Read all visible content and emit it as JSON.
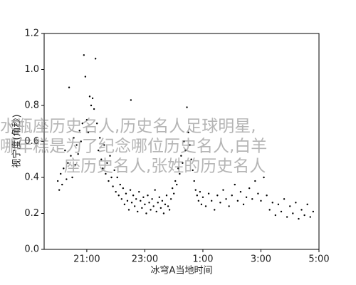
{
  "chart_data": {
    "type": "scatter",
    "xlabel": "冰穹A当地时间",
    "ylabel": "视宁度(角秒)",
    "xlim": [
      19.53,
      29
    ],
    "ylim": [
      0,
      1.2
    ],
    "xticks": [
      {
        "value": 21,
        "label": "21:00"
      },
      {
        "value": 23,
        "label": "23:00"
      },
      {
        "value": 25,
        "label": "1:00"
      },
      {
        "value": 27,
        "label": "3:00"
      },
      {
        "value": 29,
        "label": "5:00"
      }
    ],
    "yticks": [
      {
        "value": 0,
        "label": "0.0"
      },
      0.2,
      0.4,
      0.6,
      0.8,
      {
        "value": 1,
        "label": "1.0"
      },
      1.2
    ],
    "grid": false,
    "color": "#000000",
    "watermark": [
      "水瓶座历史名人,历史名人足球明星,",
      "哪年糕是为了纪念哪位历史名人,白羊",
      "座历史名人,张姓的历史名人"
    ],
    "x": [
      20.0,
      20.05,
      20.1,
      20.15,
      20.2,
      20.25,
      20.3,
      20.35,
      20.39,
      20.45,
      20.5,
      20.55,
      20.6,
      20.65,
      20.7,
      20.75,
      20.8,
      20.85,
      20.9,
      20.95,
      21.0,
      21.05,
      21.1,
      21.15,
      21.2,
      21.25,
      21.3,
      21.35,
      21.4,
      21.45,
      21.5,
      21.55,
      21.6,
      21.65,
      21.7,
      21.75,
      21.8,
      21.85,
      21.9,
      21.95,
      22.0,
      22.05,
      22.1,
      22.15,
      22.2,
      22.25,
      22.3,
      22.35,
      22.4,
      22.45,
      22.5,
      22.52,
      22.55,
      22.6,
      22.65,
      22.7,
      22.75,
      22.8,
      22.85,
      22.9,
      22.95,
      23.0,
      23.05,
      23.1,
      23.15,
      23.2,
      23.25,
      23.3,
      23.35,
      23.4,
      23.45,
      23.5,
      23.55,
      23.6,
      23.65,
      23.7,
      23.75,
      23.8,
      23.85,
      23.9,
      23.95,
      24.0,
      24.05,
      24.1,
      24.15,
      24.2,
      24.25,
      24.3,
      24.35,
      24.4,
      24.45,
      24.5,
      24.55,
      24.6,
      24.65,
      24.7,
      24.75,
      24.8,
      24.85,
      24.9,
      24.95,
      25.0,
      25.1,
      25.2,
      25.3,
      25.4,
      25.5,
      25.6,
      25.7,
      25.8,
      25.9,
      26.0,
      26.1,
      26.2,
      26.3,
      26.4,
      26.5,
      26.6,
      26.7,
      26.8,
      26.9,
      27.0,
      27.1,
      27.2,
      27.3,
      27.4,
      27.5,
      27.6,
      27.7,
      27.8,
      27.9,
      28.0,
      28.1,
      28.2,
      28.3,
      28.4,
      28.5,
      28.6,
      28.7,
      28.8
    ],
    "values": [
      0.38,
      0.33,
      0.42,
      0.36,
      0.45,
      0.55,
      0.39,
      0.48,
      0.9,
      0.52,
      0.4,
      0.62,
      0.47,
      0.58,
      0.53,
      0.66,
      0.6,
      0.7,
      1.08,
      0.96,
      0.72,
      0.65,
      0.85,
      0.8,
      0.84,
      0.78,
      1.06,
      0.7,
      0.55,
      0.62,
      0.5,
      0.45,
      0.58,
      0.42,
      0.48,
      0.38,
      0.52,
      0.4,
      0.35,
      0.44,
      0.32,
      0.4,
      0.3,
      0.36,
      0.28,
      0.34,
      0.25,
      0.31,
      0.27,
      0.22,
      0.33,
      0.83,
      0.26,
      0.3,
      0.24,
      0.28,
      0.21,
      0.32,
      0.27,
      0.23,
      0.29,
      0.25,
      0.2,
      0.3,
      0.26,
      0.22,
      0.28,
      0.24,
      0.33,
      0.21,
      0.26,
      0.29,
      0.23,
      0.27,
      0.2,
      0.25,
      0.3,
      0.24,
      0.22,
      0.28,
      0.34,
      0.31,
      0.38,
      0.36,
      0.45,
      0.42,
      0.52,
      0.48,
      0.6,
      0.55,
      0.79,
      0.65,
      0.58,
      0.5,
      0.44,
      0.38,
      0.33,
      0.3,
      0.27,
      0.32,
      0.25,
      0.29,
      0.24,
      0.31,
      0.27,
      0.22,
      0.3,
      0.26,
      0.33,
      0.28,
      0.24,
      0.3,
      0.36,
      0.27,
      0.32,
      0.25,
      0.29,
      0.34,
      0.28,
      0.38,
      0.31,
      0.27,
      0.4,
      0.3,
      0.22,
      0.26,
      0.19,
      0.25,
      0.21,
      0.28,
      0.18,
      0.24,
      0.2,
      0.26,
      0.17,
      0.22,
      0.19,
      0.25,
      0.18,
      0.21
    ]
  }
}
